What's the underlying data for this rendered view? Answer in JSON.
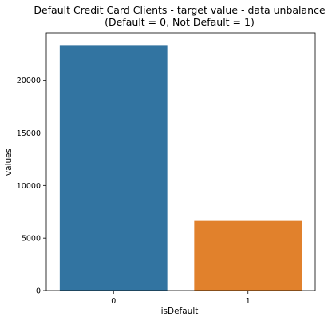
{
  "chart_data": {
    "type": "bar",
    "title": "Default Credit Card Clients - target value - data unbalance",
    "subtitle": "(Default = 0, Not Default = 1)",
    "xlabel": "isDefault",
    "ylabel": "values",
    "categories": [
      "0",
      "1"
    ],
    "values": [
      23364,
      6636
    ],
    "colors": [
      "#3274a1",
      "#e1812c"
    ],
    "ylim": [
      0,
      24532
    ],
    "yticks": [
      0,
      5000,
      10000,
      15000,
      20000
    ],
    "ytick_labels": [
      "0",
      "5000",
      "10000",
      "15000",
      "20000"
    ],
    "grid": false,
    "legend": "none"
  }
}
